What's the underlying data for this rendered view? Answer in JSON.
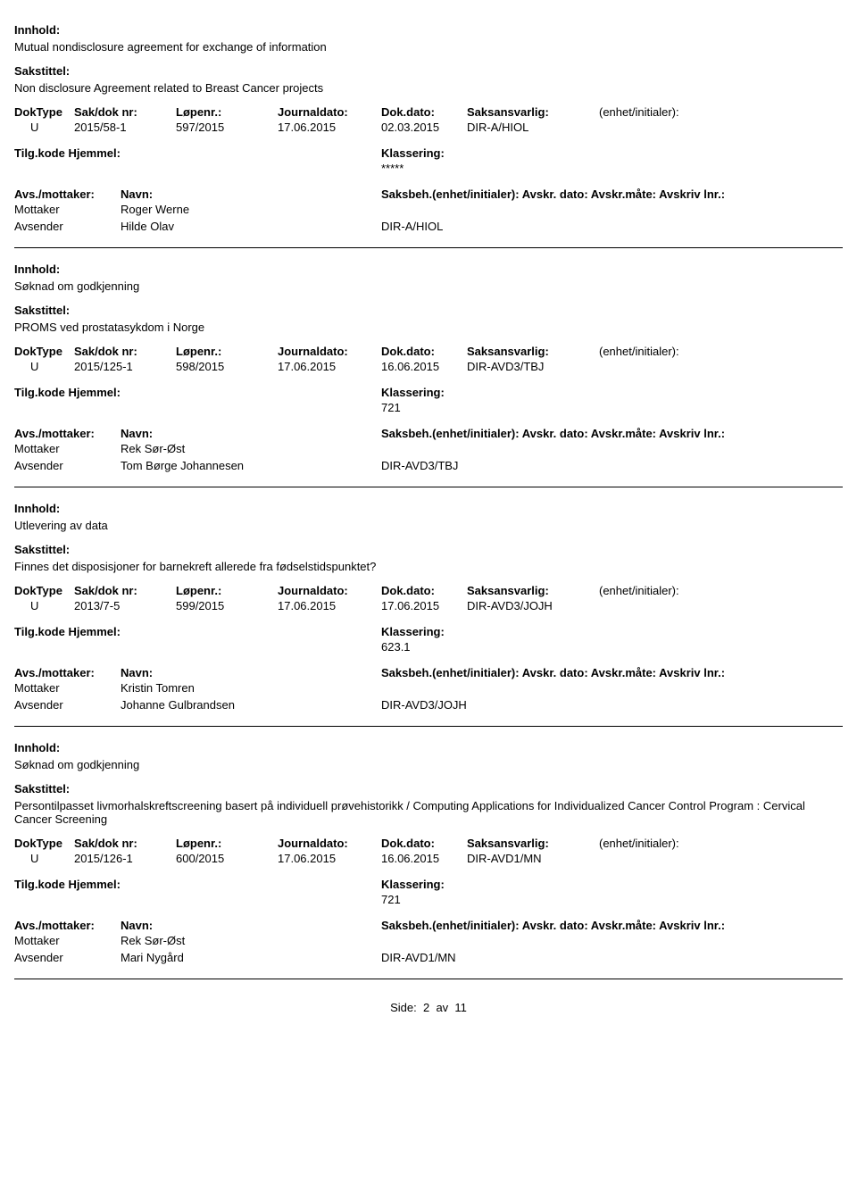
{
  "labels": {
    "innhold": "Innhold:",
    "sakstittel": "Sakstittel:",
    "doktype": "DokType",
    "sakdok": "Sak/dok nr:",
    "lopenr": "Løpenr.:",
    "journaldato": "Journaldato:",
    "dokdato": "Dok.dato:",
    "saksansvarlig": "Saksansvarlig:",
    "enhet": "(enhet/initialer):",
    "tilgkode": "Tilg.kode",
    "hjemmel": "Hjemmel:",
    "klassering": "Klassering:",
    "avsmottaker": "Avs./mottaker:",
    "navn": "Navn:",
    "saksbeh": "Saksbeh.(enhet/initialer): Avskr. dato:  Avskr.måte:  Avskriv lnr.:",
    "mottaker": "Mottaker",
    "avsender": "Avsender"
  },
  "records": [
    {
      "innhold": "Mutual nondisclosure agreement for exchange of information",
      "sakstittel": "Non disclosure Agreement related to Breast Cancer projects",
      "doktype": "U",
      "sakdok": "2015/58-1",
      "lopenr": "597/2015",
      "journaldato": "17.06.2015",
      "dokdato": "02.03.2015",
      "saksansvarlig": "DIR-A/HIOL",
      "klassering": "*****",
      "mottaker": "Roger Werne",
      "avsender": "Hilde Olav",
      "avsender_unit": "DIR-A/HIOL",
      "saksbeh_above_mottaker": false
    },
    {
      "innhold": "Søknad om godkjenning",
      "sakstittel": "PROMS ved prostatasykdom i Norge",
      "doktype": "U",
      "sakdok": "2015/125-1",
      "lopenr": "598/2015",
      "journaldato": "17.06.2015",
      "dokdato": "16.06.2015",
      "saksansvarlig": "DIR-AVD3/TBJ",
      "klassering": "721",
      "mottaker": "Rek Sør-Øst",
      "avsender": "Tom Børge Johannesen",
      "avsender_unit": "DIR-AVD3/TBJ",
      "saksbeh_above_mottaker": false
    },
    {
      "innhold": "Utlevering av data",
      "sakstittel": "Finnes det disposisjoner for barnekreft allerede fra fødselstidspunktet?",
      "doktype": "U",
      "sakdok": "2013/7-5",
      "lopenr": "599/2015",
      "journaldato": "17.06.2015",
      "dokdato": "17.06.2015",
      "saksansvarlig": "DIR-AVD3/JOJH",
      "klassering": "623.1",
      "mottaker": "Kristin Tomren",
      "avsender": "Johanne Gulbrandsen",
      "avsender_unit": "DIR-AVD3/JOJH",
      "saksbeh_above_mottaker": true
    },
    {
      "innhold": "Søknad om godkjenning",
      "sakstittel": "Persontilpasset livmorhalskreftscreening basert på individuell prøvehistorikk / Computing Applications for Individualized Cancer Control Program : Cervical Cancer Screening",
      "doktype": "U",
      "sakdok": "2015/126-1",
      "lopenr": "600/2015",
      "journaldato": "17.06.2015",
      "dokdato": "16.06.2015",
      "saksansvarlig": "DIR-AVD1/MN",
      "klassering": "721",
      "mottaker": "Rek Sør-Øst",
      "avsender": "Mari Nygård",
      "avsender_unit": "DIR-AVD1/MN",
      "saksbeh_above_mottaker": true
    }
  ],
  "footer": {
    "side_label": "Side:",
    "page": "2",
    "av": "av",
    "total": "11"
  }
}
